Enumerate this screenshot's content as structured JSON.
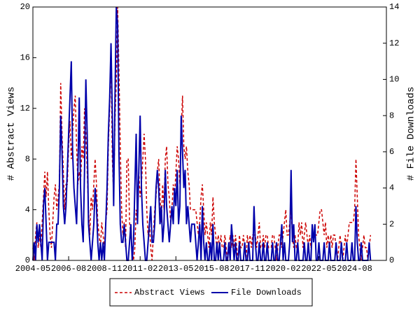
{
  "chart_data": {
    "type": "line",
    "y_label": "# Abstract Views",
    "y2_label": "# File Downloads",
    "x": [
      "2004-05",
      "2004-06",
      "2004-07",
      "2004-08",
      "2004-09",
      "2004-10",
      "2004-11",
      "2004-12",
      "2005-01",
      "2005-02",
      "2005-03",
      "2005-04",
      "2005-05",
      "2005-06",
      "2005-07",
      "2005-08",
      "2005-09",
      "2005-10",
      "2005-11",
      "2005-12",
      "2006-01",
      "2006-02",
      "2006-03",
      "2006-04",
      "2006-05",
      "2006-06",
      "2006-07",
      "2006-08",
      "2006-09",
      "2006-10",
      "2006-11",
      "2006-12",
      "2007-01",
      "2007-02",
      "2007-03",
      "2007-04",
      "2007-05",
      "2007-06",
      "2007-07",
      "2007-08",
      "2007-09",
      "2007-10",
      "2007-11",
      "2007-12",
      "2008-01",
      "2008-02",
      "2008-03",
      "2008-04",
      "2008-05",
      "2008-06",
      "2008-07",
      "2008-08",
      "2008-09",
      "2008-10",
      "2008-11",
      "2008-12",
      "2009-01",
      "2009-02",
      "2009-03",
      "2009-04",
      "2009-05",
      "2009-06",
      "2009-07",
      "2009-08",
      "2009-09",
      "2009-10",
      "2009-11",
      "2009-12",
      "2010-01",
      "2010-02",
      "2010-03",
      "2010-04",
      "2010-05",
      "2010-06",
      "2010-07",
      "2010-08",
      "2010-09",
      "2010-10",
      "2010-11",
      "2010-12",
      "2011-01",
      "2011-02",
      "2011-03",
      "2011-04",
      "2011-05",
      "2011-06",
      "2011-07",
      "2011-08",
      "2011-09",
      "2011-10",
      "2011-11",
      "2011-12",
      "2012-01",
      "2012-02",
      "2012-03",
      "2012-04",
      "2012-05",
      "2012-06",
      "2012-07",
      "2012-08",
      "2012-09",
      "2012-10",
      "2012-11",
      "2012-12",
      "2013-01",
      "2013-02",
      "2013-03",
      "2013-04",
      "2013-05",
      "2013-06",
      "2013-07",
      "2013-08",
      "2013-09",
      "2013-10",
      "2013-11",
      "2013-12",
      "2014-01",
      "2014-02",
      "2014-03",
      "2014-04",
      "2014-05",
      "2014-06",
      "2014-07",
      "2014-08",
      "2014-09",
      "2014-10",
      "2014-11",
      "2014-12",
      "2015-01",
      "2015-02",
      "2015-03",
      "2015-04",
      "2015-05",
      "2015-06",
      "2015-07",
      "2015-08",
      "2015-09",
      "2015-10",
      "2015-11",
      "2015-12",
      "2016-01",
      "2016-02",
      "2016-03",
      "2016-04",
      "2016-05",
      "2016-06",
      "2016-07",
      "2016-08",
      "2016-09",
      "2016-10",
      "2016-11",
      "2016-12",
      "2017-01",
      "2017-02",
      "2017-03",
      "2017-04",
      "2017-05",
      "2017-06",
      "2017-07",
      "2017-08",
      "2017-09",
      "2017-10",
      "2017-11",
      "2017-12",
      "2018-01",
      "2018-02",
      "2018-03",
      "2018-04",
      "2018-05",
      "2018-06",
      "2018-07",
      "2018-08",
      "2018-09",
      "2018-10",
      "2018-11",
      "2018-12",
      "2019-01",
      "2019-02",
      "2019-03",
      "2019-04",
      "2019-05",
      "2019-06",
      "2019-07",
      "2019-08",
      "2019-09",
      "2019-10",
      "2019-11",
      "2019-12",
      "2020-01",
      "2020-02",
      "2020-03",
      "2020-04",
      "2020-05",
      "2020-06",
      "2020-07",
      "2020-08",
      "2020-09",
      "2020-10",
      "2020-11",
      "2020-12",
      "2021-01",
      "2021-02",
      "2021-03",
      "2021-04",
      "2021-05",
      "2021-06",
      "2021-07",
      "2021-08",
      "2021-09",
      "2021-10",
      "2021-11",
      "2021-12",
      "2022-01",
      "2022-02",
      "2022-03",
      "2022-04",
      "2022-05",
      "2022-06",
      "2022-07",
      "2022-08",
      "2022-09",
      "2022-10",
      "2022-11",
      "2022-12",
      "2023-01",
      "2023-02",
      "2023-03",
      "2023-04",
      "2023-05",
      "2023-06",
      "2023-07",
      "2023-08",
      "2023-09",
      "2023-10",
      "2023-11",
      "2023-12",
      "2024-01",
      "2024-02",
      "2024-03",
      "2024-04",
      "2024-05",
      "2024-06",
      "2024-07",
      "2024-08",
      "2024-09",
      "2024-10",
      "2024-11",
      "2024-12",
      "2025-01",
      "2025-02",
      "2025-03",
      "2025-04",
      "2025-05",
      "2025-06",
      "2025-07",
      "2025-08"
    ],
    "xticks": [
      "2004-05",
      "2006-08",
      "2008-11",
      "2011-02",
      "2013-05",
      "2015-08",
      "2017-11",
      "2020-02",
      "2022-05",
      "2024-08"
    ],
    "ylim": [
      0,
      20
    ],
    "yticks": [
      0,
      4,
      8,
      12,
      16,
      20
    ],
    "y2lim": [
      0,
      14
    ],
    "y2ticks": [
      0,
      2,
      4,
      6,
      8,
      10,
      12,
      14
    ],
    "legend": "bottom",
    "series": [
      {
        "name": "Abstract Views",
        "color": "#cc0000",
        "values": [
          1,
          0,
          2,
          3,
          1,
          2,
          1,
          3,
          5,
          7,
          5,
          7,
          4,
          2,
          1,
          3,
          5,
          6,
          4,
          5,
          6,
          14,
          10,
          7,
          4,
          6,
          6,
          9,
          11,
          8,
          10,
          12,
          13,
          9,
          6,
          7,
          6,
          9,
          8,
          12,
          10,
          7,
          4,
          2,
          5,
          4,
          6,
          8,
          6,
          3,
          2,
          1,
          3,
          2,
          1,
          3,
          4,
          9,
          12,
          16,
          8,
          5,
          11,
          14,
          20,
          15,
          9,
          4,
          2,
          3,
          1,
          8,
          8,
          3,
          2,
          1,
          0,
          1,
          4,
          3,
          7,
          5,
          6,
          8,
          10,
          8,
          4,
          2,
          3,
          1,
          0,
          2,
          4,
          5,
          7,
          8,
          5,
          3,
          6,
          4,
          8,
          9,
          6,
          5,
          3,
          4,
          6,
          5,
          7,
          9,
          8,
          6,
          10,
          13,
          9,
          8,
          9,
          7,
          6,
          4,
          4,
          4,
          4,
          4,
          3,
          2,
          3,
          5,
          6,
          4,
          2,
          3,
          2,
          1,
          3,
          2,
          5,
          3,
          2,
          1,
          2,
          1,
          2,
          1,
          1,
          2,
          1,
          0,
          1,
          2,
          1,
          2,
          1,
          2,
          1,
          0,
          2,
          1,
          1,
          2,
          1,
          0,
          2,
          1,
          2,
          1,
          2,
          2,
          2,
          1,
          2,
          3,
          1,
          1,
          2,
          1,
          2,
          2,
          1,
          1,
          1,
          2,
          2,
          1,
          0,
          1,
          2,
          2,
          1,
          2,
          3,
          4,
          2,
          2,
          3,
          4,
          2,
          1,
          2,
          1,
          1,
          3,
          2,
          3,
          1,
          2,
          3,
          2,
          1,
          2,
          1,
          2,
          2,
          2,
          2,
          2,
          3,
          4,
          4,
          3,
          2,
          3,
          1,
          2,
          1,
          2,
          1,
          2,
          2,
          1,
          0,
          1,
          2,
          1,
          0,
          1,
          2,
          1,
          2,
          3,
          3,
          3,
          3,
          4,
          8,
          5,
          2,
          1,
          0,
          1,
          2,
          1,
          1,
          0,
          1,
          2
        ]
      },
      {
        "name": "File Downloads",
        "color": "#0000aa",
        "axis": "y2",
        "values": [
          0,
          1,
          0,
          2,
          1,
          2,
          1,
          0,
          3,
          4,
          2,
          0,
          1,
          1,
          1,
          1,
          1,
          0,
          2,
          2,
          4,
          8,
          6,
          3,
          2,
          3,
          5,
          7,
          9,
          11,
          6,
          4,
          3,
          2,
          5,
          9,
          4,
          2,
          1,
          5,
          10,
          7,
          2,
          1,
          0,
          1,
          2,
          4,
          3,
          1,
          0,
          1,
          0,
          1,
          0,
          2,
          4,
          7,
          9,
          12,
          8,
          3,
          9,
          14,
          13,
          6,
          2,
          1,
          1,
          2,
          1,
          0,
          0,
          1,
          2,
          0,
          1,
          4,
          7,
          2,
          5,
          8,
          4,
          2,
          1,
          0,
          0,
          1,
          2,
          3,
          1,
          1,
          2,
          4,
          5,
          4,
          2,
          3,
          1,
          2,
          5,
          3,
          2,
          1,
          2,
          3,
          2,
          4,
          3,
          5,
          2,
          3,
          8,
          6,
          4,
          5,
          2,
          3,
          2,
          1,
          2,
          2,
          2,
          1,
          0,
          1,
          2,
          0,
          3,
          1,
          0,
          1,
          0,
          0,
          1,
          0,
          2,
          0,
          0,
          1,
          0,
          1,
          0,
          0,
          0,
          1,
          0,
          0,
          1,
          0,
          2,
          1,
          0,
          1,
          0,
          0,
          1,
          0,
          0,
          0,
          1,
          0,
          0,
          1,
          0,
          0,
          0,
          3,
          1,
          0,
          0,
          1,
          0,
          0,
          1,
          0,
          0,
          1,
          0,
          0,
          0,
          1,
          0,
          0,
          1,
          0,
          0,
          1,
          2,
          0,
          1,
          0,
          0,
          0,
          1,
          5,
          1,
          2,
          0,
          0,
          1,
          0,
          0,
          0,
          0,
          1,
          0,
          0,
          1,
          0,
          0,
          2,
          1,
          2,
          0,
          0,
          1,
          0,
          0,
          0,
          1,
          0,
          0,
          0,
          1,
          0,
          0,
          0,
          0,
          1,
          0,
          0,
          0,
          1,
          0,
          0,
          0,
          1,
          0,
          0,
          0,
          1,
          0,
          0,
          3,
          1,
          0,
          0,
          1,
          0,
          0,
          0,
          0,
          0,
          1,
          0
        ]
      }
    ]
  }
}
